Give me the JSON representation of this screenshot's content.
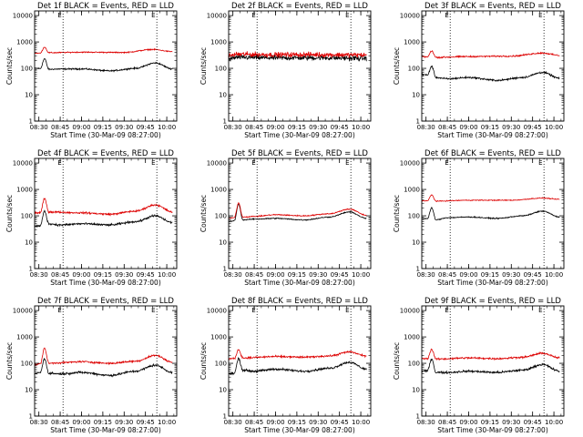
{
  "figure": {
    "colors": {
      "events": "#000000",
      "lld": "#dd0000",
      "axes": "#000000",
      "background": "#ffffff"
    },
    "x_ticks": [
      "08:30",
      "08:45",
      "09:00",
      "09:15",
      "09:30",
      "09:45",
      "10:00"
    ],
    "y_ticks": [
      "1",
      "10",
      "100",
      "1000",
      "10000"
    ],
    "ylabel": "Counts/sec",
    "xlabel": "Start Time (30-Mar-09 08:27:00)"
  },
  "chart_data": [
    {
      "type": "line",
      "title": "Det 1f BLACK = Events, RED = LLD",
      "xlim": [
        "08:27",
        "10:07"
      ],
      "ylim": [
        1,
        15000
      ],
      "yscale": "log",
      "vlines": [
        "08:47",
        "09:53"
      ],
      "events_marker": "E",
      "series": [
        {
          "role": "events",
          "color": "#000000",
          "anchors": [
            [
              "08:27",
              100
            ],
            [
              "08:31",
              98
            ],
            [
              "08:34",
              230
            ],
            [
              "08:37",
              92
            ],
            [
              "08:45",
              94
            ],
            [
              "09:00",
              95
            ],
            [
              "09:20",
              80
            ],
            [
              "09:38",
              100
            ],
            [
              "09:52",
              160
            ],
            [
              "10:04",
              95
            ]
          ],
          "noise": 0.04,
          "flare": 0
        },
        {
          "role": "lld",
          "color": "#dd0000",
          "anchors": [
            [
              "08:27",
              380
            ],
            [
              "08:31",
              375
            ],
            [
              "08:34",
              640
            ],
            [
              "08:37",
              390
            ],
            [
              "09:00",
              410
            ],
            [
              "09:30",
              400
            ],
            [
              "09:50",
              520
            ],
            [
              "10:04",
              430
            ]
          ],
          "noise": 0.03,
          "flare": 0
        }
      ]
    },
    {
      "type": "line",
      "title": "Det 2f BLACK = Events, RED = LLD",
      "xlim": [
        "08:27",
        "10:07"
      ],
      "ylim": [
        1,
        15000
      ],
      "yscale": "log",
      "vlines": [
        "08:47",
        "09:53"
      ],
      "events_marker": "E",
      "series": [
        {
          "role": "events",
          "color": "#000000",
          "anchors": [
            [
              "08:27",
              220
            ],
            [
              "08:33",
              260
            ],
            [
              "09:00",
              250
            ],
            [
              "09:30",
              250
            ],
            [
              "10:04",
              240
            ]
          ],
          "noise": 0.14,
          "flare": 0
        },
        {
          "role": "lld",
          "color": "#dd0000",
          "anchors": [
            [
              "08:27",
              300
            ],
            [
              "08:33",
              340
            ],
            [
              "09:00",
              330
            ],
            [
              "09:30",
              330
            ],
            [
              "10:04",
              320
            ]
          ],
          "noise": 0.14,
          "flare": 0
        }
      ]
    },
    {
      "type": "line",
      "title": "Det 3f BLACK = Events, RED = LLD",
      "xlim": [
        "08:27",
        "10:07"
      ],
      "ylim": [
        1,
        15000
      ],
      "yscale": "log",
      "vlines": [
        "08:47",
        "09:53"
      ],
      "events_marker": "E",
      "series": [
        {
          "role": "events",
          "color": "#000000",
          "anchors": [
            [
              "08:27",
              60
            ],
            [
              "08:31",
              55
            ],
            [
              "08:34",
              120
            ],
            [
              "08:37",
              45
            ],
            [
              "08:45",
              40
            ],
            [
              "09:00",
              45
            ],
            [
              "09:20",
              35
            ],
            [
              "09:38",
              45
            ],
            [
              "09:52",
              70
            ],
            [
              "10:04",
              42
            ]
          ],
          "noise": 0.05,
          "flare": 0
        },
        {
          "role": "lld",
          "color": "#dd0000",
          "anchors": [
            [
              "08:27",
              280
            ],
            [
              "08:31",
              270
            ],
            [
              "08:34",
              460
            ],
            [
              "08:37",
              260
            ],
            [
              "09:00",
              280
            ],
            [
              "09:30",
              290
            ],
            [
              "09:52",
              380
            ],
            [
              "10:04",
              310
            ]
          ],
          "noise": 0.04,
          "flare": 0
        }
      ]
    },
    {
      "type": "line",
      "title": "Det 4f BLACK = Events, RED = LLD",
      "xlim": [
        "08:27",
        "10:07"
      ],
      "ylim": [
        1,
        15000
      ],
      "yscale": "log",
      "vlines": [
        "08:47",
        "09:53"
      ],
      "events_marker": "E",
      "series": [
        {
          "role": "events",
          "color": "#000000",
          "anchors": [
            [
              "08:27",
              40
            ],
            [
              "08:31",
              42
            ],
            [
              "08:34",
              150
            ],
            [
              "08:37",
              50
            ],
            [
              "08:45",
              45
            ],
            [
              "09:00",
              50
            ],
            [
              "09:20",
              45
            ],
            [
              "09:38",
              60
            ],
            [
              "09:52",
              100
            ],
            [
              "10:04",
              55
            ]
          ],
          "noise": 0.06,
          "flare": 0
        },
        {
          "role": "lld",
          "color": "#dd0000",
          "anchors": [
            [
              "08:27",
              130
            ],
            [
              "08:31",
              130
            ],
            [
              "08:34",
              450
            ],
            [
              "08:37",
              140
            ],
            [
              "09:00",
              130
            ],
            [
              "09:20",
              115
            ],
            [
              "09:38",
              150
            ],
            [
              "09:52",
              260
            ],
            [
              "10:04",
              140
            ]
          ],
          "noise": 0.05,
          "flare": 0
        }
      ]
    },
    {
      "type": "line",
      "title": "Det 5f BLACK = Events, RED = LLD",
      "xlim": [
        "08:27",
        "10:07"
      ],
      "ylim": [
        1,
        15000
      ],
      "yscale": "log",
      "vlines": [
        "08:47",
        "09:53"
      ],
      "events_marker": "E",
      "series": [
        {
          "role": "events",
          "color": "#000000",
          "anchors": [
            [
              "08:27",
              60
            ],
            [
              "08:31",
              65
            ],
            [
              "08:34",
              280
            ],
            [
              "08:37",
              70
            ],
            [
              "08:45",
              75
            ],
            [
              "09:00",
              80
            ],
            [
              "09:20",
              70
            ],
            [
              "09:38",
              90
            ],
            [
              "09:52",
              140
            ],
            [
              "10:04",
              80
            ]
          ],
          "noise": 0.03,
          "flare": 0
        },
        {
          "role": "lld",
          "color": "#dd0000",
          "anchors": [
            [
              "08:27",
              80
            ],
            [
              "08:31",
              85
            ],
            [
              "08:34",
              310
            ],
            [
              "08:37",
              90
            ],
            [
              "08:45",
              95
            ],
            [
              "09:00",
              110
            ],
            [
              "09:20",
              100
            ],
            [
              "09:38",
              120
            ],
            [
              "09:52",
              180
            ],
            [
              "10:04",
              105
            ]
          ],
          "noise": 0.03,
          "flare": 0
        }
      ]
    },
    {
      "type": "line",
      "title": "Det 6f BLACK = Events, RED = LLD",
      "xlim": [
        "08:27",
        "10:07"
      ],
      "ylim": [
        1,
        15000
      ],
      "yscale": "log",
      "vlines": [
        "08:47",
        "09:53"
      ],
      "events_marker": "E",
      "series": [
        {
          "role": "events",
          "color": "#000000",
          "anchors": [
            [
              "08:27",
              80
            ],
            [
              "08:31",
              78
            ],
            [
              "08:34",
              200
            ],
            [
              "08:37",
              70
            ],
            [
              "08:45",
              85
            ],
            [
              "09:00",
              90
            ],
            [
              "09:20",
              80
            ],
            [
              "09:38",
              100
            ],
            [
              "09:52",
              150
            ],
            [
              "10:04",
              90
            ]
          ],
          "noise": 0.03,
          "flare": 0
        },
        {
          "role": "lld",
          "color": "#dd0000",
          "anchors": [
            [
              "08:27",
              370
            ],
            [
              "08:31",
              370
            ],
            [
              "08:34",
              620
            ],
            [
              "08:37",
              360
            ],
            [
              "09:00",
              390
            ],
            [
              "09:30",
              390
            ],
            [
              "09:52",
              470
            ],
            [
              "10:04",
              420
            ]
          ],
          "noise": 0.025,
          "flare": 0
        }
      ]
    },
    {
      "type": "line",
      "title": "Det 7f BLACK = Events, RED = LLD",
      "xlim": [
        "08:27",
        "10:07"
      ],
      "ylim": [
        1,
        15000
      ],
      "yscale": "log",
      "vlines": [
        "08:47",
        "09:53"
      ],
      "events_marker": "E",
      "series": [
        {
          "role": "events",
          "color": "#000000",
          "anchors": [
            [
              "08:27",
              40
            ],
            [
              "08:31",
              45
            ],
            [
              "08:34",
              150
            ],
            [
              "08:37",
              42
            ],
            [
              "08:45",
              40
            ],
            [
              "09:00",
              45
            ],
            [
              "09:20",
              35
            ],
            [
              "09:38",
              50
            ],
            [
              "09:52",
              85
            ],
            [
              "10:04",
              45
            ]
          ],
          "noise": 0.06,
          "flare": 0
        },
        {
          "role": "lld",
          "color": "#dd0000",
          "anchors": [
            [
              "08:27",
              90
            ],
            [
              "08:31",
              95
            ],
            [
              "08:34",
              380
            ],
            [
              "08:37",
              100
            ],
            [
              "08:45",
              105
            ],
            [
              "09:00",
              115
            ],
            [
              "09:20",
              100
            ],
            [
              "09:38",
              120
            ],
            [
              "09:52",
              200
            ],
            [
              "10:04",
              110
            ]
          ],
          "noise": 0.05,
          "flare": 0
        }
      ]
    },
    {
      "type": "line",
      "title": "Det 8f BLACK = Events, RED = LLD",
      "xlim": [
        "08:27",
        "10:07"
      ],
      "ylim": [
        1,
        15000
      ],
      "yscale": "log",
      "vlines": [
        "08:47",
        "09:53"
      ],
      "events_marker": "E",
      "series": [
        {
          "role": "events",
          "color": "#000000",
          "anchors": [
            [
              "08:27",
              40
            ],
            [
              "08:31",
              42
            ],
            [
              "08:34",
              150
            ],
            [
              "08:37",
              55
            ],
            [
              "08:45",
              50
            ],
            [
              "09:00",
              60
            ],
            [
              "09:20",
              50
            ],
            [
              "09:38",
              65
            ],
            [
              "09:52",
              110
            ],
            [
              "10:04",
              60
            ]
          ],
          "noise": 0.06,
          "flare": 0
        },
        {
          "role": "lld",
          "color": "#dd0000",
          "anchors": [
            [
              "08:27",
              150
            ],
            [
              "08:31",
              150
            ],
            [
              "08:34",
              330
            ],
            [
              "08:37",
              160
            ],
            [
              "09:00",
              180
            ],
            [
              "09:20",
              170
            ],
            [
              "09:38",
              190
            ],
            [
              "09:52",
              270
            ],
            [
              "10:04",
              190
            ]
          ],
          "noise": 0.05,
          "flare": 0
        }
      ]
    },
    {
      "type": "line",
      "title": "Det 9f BLACK = Events, RED = LLD",
      "xlim": [
        "08:27",
        "10:07"
      ],
      "ylim": [
        1,
        15000
      ],
      "yscale": "log",
      "vlines": [
        "08:47",
        "09:53"
      ],
      "events_marker": "E",
      "series": [
        {
          "role": "events",
          "color": "#000000",
          "anchors": [
            [
              "08:27",
              50
            ],
            [
              "08:31",
              52
            ],
            [
              "08:34",
              150
            ],
            [
              "08:37",
              45
            ],
            [
              "08:45",
              45
            ],
            [
              "09:00",
              50
            ],
            [
              "09:20",
              45
            ],
            [
              "09:38",
              55
            ],
            [
              "09:52",
              90
            ],
            [
              "10:04",
              50
            ]
          ],
          "noise": 0.06,
          "flare": 0
        },
        {
          "role": "lld",
          "color": "#dd0000",
          "anchors": [
            [
              "08:27",
              150
            ],
            [
              "08:31",
              150
            ],
            [
              "08:34",
              340
            ],
            [
              "08:37",
              145
            ],
            [
              "09:00",
              160
            ],
            [
              "09:20",
              150
            ],
            [
              "09:38",
              170
            ],
            [
              "09:52",
              240
            ],
            [
              "10:04",
              160
            ]
          ],
          "noise": 0.05,
          "flare": 0
        }
      ]
    }
  ]
}
